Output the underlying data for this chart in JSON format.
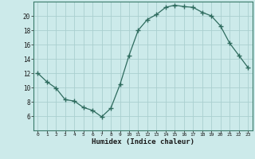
{
  "x": [
    0,
    1,
    2,
    3,
    4,
    5,
    6,
    7,
    8,
    9,
    10,
    11,
    12,
    13,
    14,
    15,
    16,
    17,
    18,
    19,
    20,
    21,
    22,
    23
  ],
  "y": [
    12,
    10.8,
    9.9,
    8.3,
    8.1,
    7.2,
    6.8,
    5.9,
    7.1,
    10.4,
    14.5,
    18.0,
    19.5,
    20.2,
    21.2,
    21.5,
    21.3,
    21.2,
    20.5,
    20.0,
    18.6,
    16.2,
    14.5,
    12.8
  ],
  "xlabel": "Humidex (Indice chaleur)",
  "line_color": "#2e6b5e",
  "marker": "+",
  "bg_color": "#cceaea",
  "grid_color": "#aacfcf",
  "ylim": [
    4,
    22
  ],
  "xlim": [
    -0.5,
    23.5
  ],
  "yticks": [
    6,
    8,
    10,
    12,
    14,
    16,
    18,
    20
  ],
  "xticks": [
    0,
    1,
    2,
    3,
    4,
    5,
    6,
    7,
    8,
    9,
    10,
    11,
    12,
    13,
    14,
    15,
    16,
    17,
    18,
    19,
    20,
    21,
    22,
    23
  ]
}
